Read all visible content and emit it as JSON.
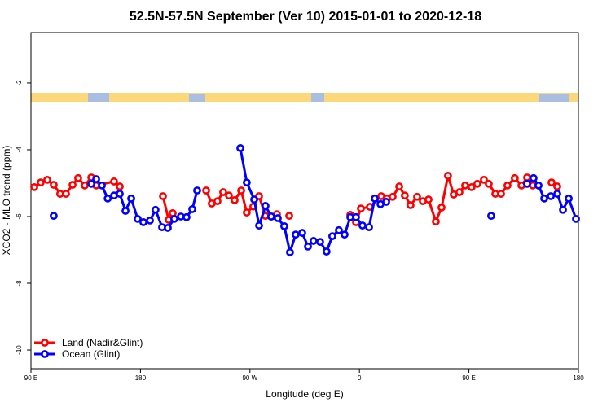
{
  "chart_data": {
    "type": "line",
    "title": "52.5N-57.5N September (Ver 10)   2015-01-01 to 2020-12-18",
    "x_label": "Longitude (deg E)",
    "y_label": "XCO2 - MLO trend (ppm)",
    "xlim": [
      90,
      540
    ],
    "ylim": [
      -10.56,
      -0.49
    ],
    "xticks": [
      {
        "value": 90,
        "label": "90 E"
      },
      {
        "value": 180,
        "label": "180"
      },
      {
        "value": 270,
        "label": "90 W"
      },
      {
        "value": 360,
        "label": "0"
      },
      {
        "value": 450,
        "label": "90 E"
      },
      {
        "value": 540,
        "label": "180"
      }
    ],
    "yticks": [
      -2,
      -4,
      -6,
      -8,
      -10
    ],
    "legend": "bottomleft",
    "series": [
      {
        "name": "Land (Nadir&Glint)",
        "color": "#ff0000",
        "x": [
          92.7,
          98,
          103.4,
          108.7,
          114,
          118.8,
          124.2,
          128.8,
          134.2,
          139.6,
          143.6,
          158.3,
          163,
          null,
          198.5,
          203.2,
          206.5,
          null,
          234,
          238.6,
          243.3,
          248,
          252.7,
          257.4,
          262.8,
          267.4,
          272.8,
          277.5,
          282.8,
          287.5,
          292.2,
          null,
          302.3,
          null,
          352.5,
          357.2,
          361.2,
          368.6,
          377.9,
          382.6,
          387.3,
          392.7,
          397.3,
          402,
          407.4,
          412.1,
          416.8,
          422.8,
          427.5,
          432.8,
          437.5,
          442.2,
          446.9,
          452.2,
          456.9,
          462.3,
          466.3,
          471.7,
          476.4,
          481.7,
          487.7,
          493.2,
          497.8,
          502.5,
          null,
          517.9,
          522.6
        ],
        "values": [
          -5.12,
          -4.98,
          -4.9,
          -5.05,
          -5.32,
          -5.32,
          -5.05,
          -4.85,
          -5.07,
          -4.83,
          -5.07,
          -4.95,
          -5.1,
          null,
          -5.39,
          -6.1,
          -5.9,
          null,
          -5.22,
          -5.61,
          -5.54,
          -5.27,
          -5.37,
          -5.51,
          -5.22,
          -5.88,
          -5.7,
          -5.39,
          -5.98,
          -6.0,
          -5.93,
          null,
          -5.98,
          null,
          -5.95,
          -6.17,
          -5.76,
          -5.71,
          -5.39,
          -5.46,
          -5.41,
          -5.1,
          -5.37,
          -5.66,
          -5.41,
          -5.54,
          -5.49,
          -6.15,
          -5.73,
          -4.78,
          -5.34,
          -5.27,
          -5.07,
          -5.12,
          -5.02,
          -4.9,
          -5.02,
          -5.32,
          -5.32,
          -5.07,
          -4.85,
          -5.07,
          -4.83,
          -5.07,
          null,
          -4.98,
          -5.1
        ]
      },
      {
        "name": "Ocean (Glint)",
        "color": "#0000ff",
        "x": [
          108.7,
          null,
          139.6,
          143.6,
          148.3,
          153.1,
          158.3,
          163,
          167.7,
          172.4,
          177.7,
          182.4,
          187.8,
          192.4,
          197.8,
          202.5,
          207.8,
          213.2,
          217.9,
          222.6,
          226.6,
          null,
          262.1,
          267.4,
          273.5,
          277.5,
          282.8,
          287.5,
          292.9,
          298.2,
          302.9,
          307.6,
          313,
          317.7,
          322.3,
          327.7,
          333,
          337.7,
          343.1,
          347.8,
          352.5,
          357.2,
          362.5,
          367.9,
          372.6,
          377.3,
          382,
          null,
          468.3,
          null,
          497.8,
          503.1,
          507.2,
          511.9,
          517.3,
          522.6,
          527.3,
          532,
          538
        ],
        "values": [
          -5.98,
          null,
          -5.02,
          -4.88,
          -5.07,
          -5.46,
          -5.37,
          -5.32,
          -5.83,
          -5.46,
          -6.07,
          -6.17,
          -6.12,
          -5.8,
          -6.32,
          -6.34,
          -6.07,
          -6.0,
          -6.02,
          -5.78,
          -5.22,
          null,
          -3.95,
          -4.98,
          -5.49,
          -6.27,
          -5.68,
          -6.0,
          -6.05,
          -6.29,
          -7.07,
          -6.54,
          -6.49,
          -6.9,
          -6.73,
          -6.76,
          -7.05,
          -6.59,
          -6.41,
          -6.54,
          -6.02,
          -6.02,
          -6.27,
          -6.32,
          -5.46,
          -5.63,
          -5.56,
          null,
          -5.98,
          null,
          -5.02,
          -4.85,
          -5.07,
          -5.46,
          -5.39,
          -5.32,
          -5.8,
          -5.46,
          -6.07
        ]
      }
    ]
  }
}
